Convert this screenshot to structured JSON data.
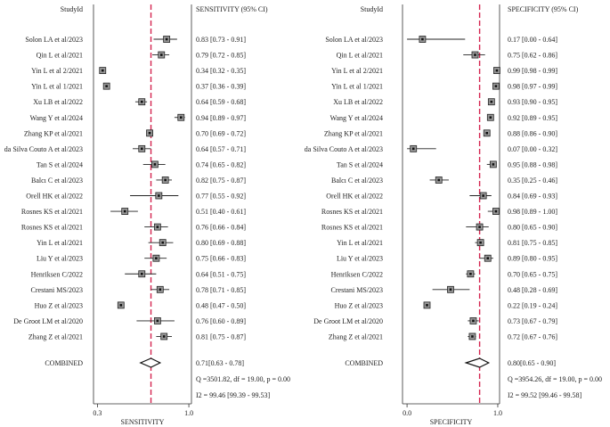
{
  "chart_data": [
    {
      "type": "forest",
      "id": "sensitivity",
      "header_study": "StudyId",
      "header_ci": "SENSITIVITY (95% CI)",
      "xlabel": "SENSITIVITY",
      "xticks": [
        "0.3",
        "1.0"
      ],
      "xlim": [
        0.27,
        1.02
      ],
      "reference_line": 0.71,
      "studies": [
        {
          "name": "Solon LA et al/2023",
          "est": 0.83,
          "lo": 0.73,
          "hi": 0.91,
          "ci_text": "0.83 [0.73 - 0.91]"
        },
        {
          "name": "Qin L et al/2021",
          "est": 0.79,
          "lo": 0.72,
          "hi": 0.85,
          "ci_text": "0.79 [0.72 - 0.85]"
        },
        {
          "name": "Yin L et al 2/2021",
          "est": 0.34,
          "lo": 0.32,
          "hi": 0.35,
          "ci_text": "0.34 [0.32 - 0.35]"
        },
        {
          "name": "Yin L et al 1/2021",
          "est": 0.37,
          "lo": 0.36,
          "hi": 0.39,
          "ci_text": "0.37 [0.36 - 0.39]"
        },
        {
          "name": "Xu LB et al/2022",
          "est": 0.64,
          "lo": 0.59,
          "hi": 0.68,
          "ci_text": "0.64 [0.59 - 0.68]"
        },
        {
          "name": "Wang Y et al/2024",
          "est": 0.94,
          "lo": 0.89,
          "hi": 0.97,
          "ci_text": "0.94 [0.89 - 0.97]"
        },
        {
          "name": "Zhang KP et al/2021",
          "est": 0.7,
          "lo": 0.69,
          "hi": 0.72,
          "ci_text": "0.70 [0.69 - 0.72]"
        },
        {
          "name": "da Silva Couto A et al/2023",
          "est": 0.64,
          "lo": 0.57,
          "hi": 0.71,
          "ci_text": "0.64 [0.57 - 0.71]"
        },
        {
          "name": "Tan S et al/2024",
          "est": 0.74,
          "lo": 0.65,
          "hi": 0.82,
          "ci_text": "0.74 [0.65 - 0.82]"
        },
        {
          "name": "Balcı C et al/2023",
          "est": 0.82,
          "lo": 0.75,
          "hi": 0.87,
          "ci_text": "0.82 [0.75 - 0.87]"
        },
        {
          "name": "Orell HK et al/2022",
          "est": 0.77,
          "lo": 0.55,
          "hi": 0.92,
          "ci_text": "0.77 [0.55 - 0.92]"
        },
        {
          "name": "Rosnes KS et al/2021",
          "est": 0.51,
          "lo": 0.4,
          "hi": 0.61,
          "ci_text": "0.51 [0.40 - 0.61]"
        },
        {
          "name": "Rosnes KS et al/2021",
          "est": 0.76,
          "lo": 0.66,
          "hi": 0.84,
          "ci_text": "0.76 [0.66 - 0.84]"
        },
        {
          "name": "Yin L et al/2021",
          "est": 0.8,
          "lo": 0.69,
          "hi": 0.88,
          "ci_text": "0.80 [0.69 - 0.88]"
        },
        {
          "name": "Liu Y et al/2023",
          "est": 0.75,
          "lo": 0.66,
          "hi": 0.83,
          "ci_text": "0.75 [0.66 - 0.83]"
        },
        {
          "name": "Henriksen C/2022",
          "est": 0.64,
          "lo": 0.51,
          "hi": 0.75,
          "ci_text": "0.64 [0.51 - 0.75]"
        },
        {
          "name": "Crestani MS/2023",
          "est": 0.78,
          "lo": 0.71,
          "hi": 0.85,
          "ci_text": "0.78 [0.71 - 0.85]"
        },
        {
          "name": "Huo Z et al/2023",
          "est": 0.48,
          "lo": 0.47,
          "hi": 0.5,
          "ci_text": "0.48 [0.47 - 0.50]"
        },
        {
          "name": "De Groot LM et al/2020",
          "est": 0.76,
          "lo": 0.6,
          "hi": 0.89,
          "ci_text": "0.76 [0.60 - 0.89]"
        },
        {
          "name": "Zhang Z et al/2021",
          "est": 0.81,
          "lo": 0.75,
          "hi": 0.87,
          "ci_text": "0.81 [0.75 - 0.87]"
        }
      ],
      "combined": {
        "name": "COMBINED",
        "est": 0.71,
        "lo": 0.63,
        "hi": 0.78,
        "ci_text": "0.71[0.63 - 0.78]"
      },
      "stats": [
        "Q =3501.82, df = 19.00, p =  0.00",
        "I2 = 99.46 [99.39 - 99.53]"
      ]
    },
    {
      "type": "forest",
      "id": "specificity",
      "header_study": "StudyId",
      "header_ci": "SPECIFICITY (95% CI)",
      "xlabel": "SPECIFICITY",
      "xticks": [
        "0.0",
        "1.0"
      ],
      "xlim": [
        -0.05,
        1.02
      ],
      "reference_line": 0.8,
      "studies": [
        {
          "name": "Solon LA et al/2023",
          "est": 0.17,
          "lo": 0.0,
          "hi": 0.64,
          "ci_text": "0.17 [0.00 - 0.64]"
        },
        {
          "name": "Qin L et al/2021",
          "est": 0.75,
          "lo": 0.62,
          "hi": 0.86,
          "ci_text": "0.75 [0.62 - 0.86]"
        },
        {
          "name": "Yin L et al 2/2021",
          "est": 0.99,
          "lo": 0.98,
          "hi": 0.99,
          "ci_text": "0.99 [0.98 - 0.99]"
        },
        {
          "name": "Yin L et al 1/2021",
          "est": 0.98,
          "lo": 0.97,
          "hi": 0.99,
          "ci_text": "0.98 [0.97 - 0.99]"
        },
        {
          "name": "Xu LB et al/2022",
          "est": 0.93,
          "lo": 0.9,
          "hi": 0.95,
          "ci_text": "0.93 [0.90 - 0.95]"
        },
        {
          "name": "Wang Y et al/2024",
          "est": 0.92,
          "lo": 0.89,
          "hi": 0.95,
          "ci_text": "0.92 [0.89 - 0.95]"
        },
        {
          "name": "Zhang KP et al/2021",
          "est": 0.88,
          "lo": 0.86,
          "hi": 0.9,
          "ci_text": "0.88 [0.86 - 0.90]"
        },
        {
          "name": "da Silva Couto A et al/2023",
          "est": 0.07,
          "lo": 0.0,
          "hi": 0.32,
          "ci_text": "0.07 [0.00 - 0.32]"
        },
        {
          "name": "Tan S et al/2024",
          "est": 0.95,
          "lo": 0.88,
          "hi": 0.98,
          "ci_text": "0.95 [0.88 - 0.98]"
        },
        {
          "name": "Balcı C et al/2023",
          "est": 0.35,
          "lo": 0.25,
          "hi": 0.46,
          "ci_text": "0.35 [0.25 - 0.46]"
        },
        {
          "name": "Orell HK et al/2022",
          "est": 0.84,
          "lo": 0.69,
          "hi": 0.93,
          "ci_text": "0.84 [0.69 - 0.93]"
        },
        {
          "name": "Rosnes KS et al/2021",
          "est": 0.98,
          "lo": 0.89,
          "hi": 1.0,
          "ci_text": "0.98 [0.89 - 1.00]"
        },
        {
          "name": "Rosnes KS et al/2021",
          "est": 0.8,
          "lo": 0.65,
          "hi": 0.9,
          "ci_text": "0.80 [0.65 - 0.90]"
        },
        {
          "name": "Yin L et al/2021",
          "est": 0.81,
          "lo": 0.75,
          "hi": 0.85,
          "ci_text": "0.81 [0.75 - 0.85]"
        },
        {
          "name": "Liu Y et al/2023",
          "est": 0.89,
          "lo": 0.8,
          "hi": 0.95,
          "ci_text": "0.89 [0.80 - 0.95]"
        },
        {
          "name": "Henriksen C/2022",
          "est": 0.7,
          "lo": 0.65,
          "hi": 0.75,
          "ci_text": "0.70 [0.65 - 0.75]"
        },
        {
          "name": "Crestani MS/2023",
          "est": 0.48,
          "lo": 0.28,
          "hi": 0.69,
          "ci_text": "0.48 [0.28 - 0.69]"
        },
        {
          "name": "Huo Z et al/2023",
          "est": 0.22,
          "lo": 0.19,
          "hi": 0.24,
          "ci_text": "0.22 [0.19 - 0.24]"
        },
        {
          "name": "De Groot LM et al/2020",
          "est": 0.73,
          "lo": 0.67,
          "hi": 0.79,
          "ci_text": "0.73 [0.67 - 0.79]"
        },
        {
          "name": "Zhang Z et al/2021",
          "est": 0.72,
          "lo": 0.67,
          "hi": 0.76,
          "ci_text": "0.72 [0.67 - 0.76]"
        }
      ],
      "combined": {
        "name": "COMBINED",
        "est": 0.8,
        "lo": 0.65,
        "hi": 0.9,
        "ci_text": "0.80[0.65 - 0.90]"
      },
      "stats": [
        "Q =3954.26, df = 19.00, p =  0.00",
        "I2 = 99.52 [99.46 - 99.58]"
      ]
    }
  ],
  "colors": {
    "reference_line": "#d4244f",
    "marker": "#222222",
    "axis": "#333333"
  }
}
